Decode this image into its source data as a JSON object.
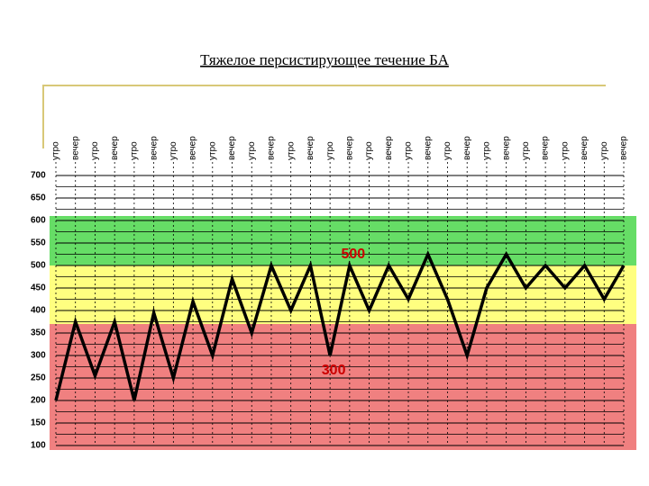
{
  "chart_data": {
    "type": "line",
    "title": "Тяжелое персистирующее течение БА",
    "categories": [
      "утро",
      "вечер",
      "утро",
      "вечер",
      "утро",
      "вечер",
      "утро",
      "вечер",
      "утро",
      "вечер",
      "утро",
      "вечер",
      "утро",
      "вечер",
      "утро",
      "вечер",
      "утро",
      "вечер",
      "утро",
      "вечер",
      "утро",
      "вечер",
      "утро",
      "вечер",
      "утро",
      "вечер",
      "утро",
      "вечер",
      "утро",
      "вечер"
    ],
    "series": [
      {
        "color": "#000000",
        "values": [
          200,
          375,
          255,
          375,
          200,
          395,
          250,
          420,
          300,
          470,
          350,
          500,
          400,
          500,
          300,
          500,
          400,
          500,
          425,
          525,
          425,
          300,
          450,
          525,
          450,
          500,
          450,
          500,
          425,
          500
        ]
      }
    ],
    "ylim": [
      100,
      700
    ],
    "yticks": [
      100,
      150,
      200,
      250,
      300,
      350,
      400,
      450,
      500,
      550,
      600,
      650,
      700
    ],
    "y_minor_ticks": [
      125,
      175,
      225,
      275,
      325,
      375,
      425,
      475,
      525,
      575,
      625,
      675
    ],
    "grid": true,
    "zones": [
      {
        "from": 90,
        "to": 370,
        "color": "#f08080"
      },
      {
        "from": 370,
        "to": 500,
        "color": "#ffff80"
      },
      {
        "from": 500,
        "to": 610,
        "color": "#66dd66"
      }
    ],
    "annotations": [
      {
        "text": "500",
        "point": 15,
        "position": "above",
        "color": "#cc0000"
      },
      {
        "text": "300",
        "point": 14,
        "position": "below",
        "color": "#cc0000"
      }
    ]
  }
}
